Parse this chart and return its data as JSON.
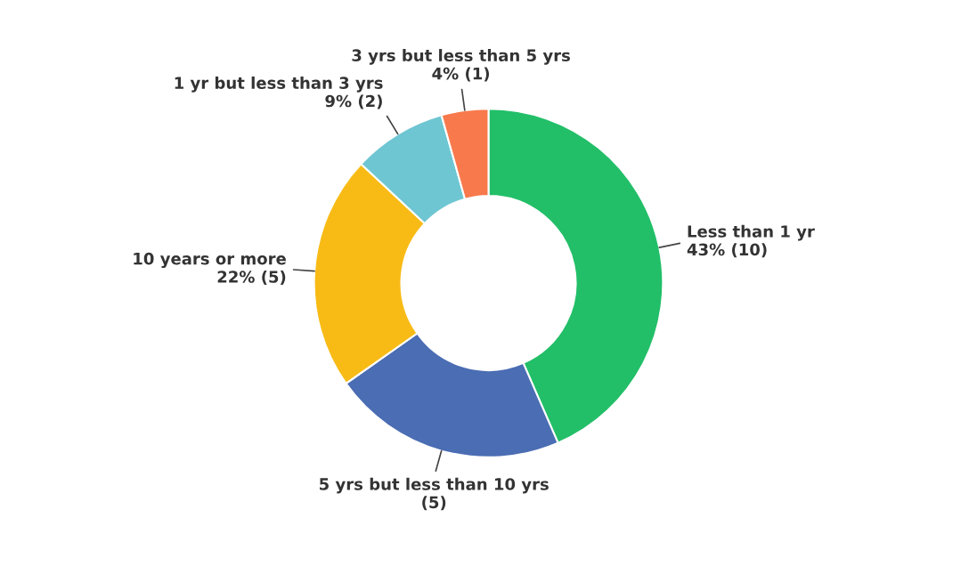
{
  "chart_data": {
    "type": "donut",
    "categories": [
      "Less than 1 yr",
      "5 yrs but less than 10 yrs",
      "10 years or more",
      "1 yr but less than 3 yrs",
      "3 yrs but less than 5 yrs"
    ],
    "values": [
      10,
      5,
      5,
      2,
      1
    ],
    "value_labels": [
      "43% (10)",
      "(5)",
      "22% (5)",
      "9% (2)",
      "4% (1)"
    ],
    "colors": [
      "#22bf68",
      "#4a6db3",
      "#f8bb16",
      "#6ec6d2",
      "#f8794c"
    ],
    "legend": false
  }
}
